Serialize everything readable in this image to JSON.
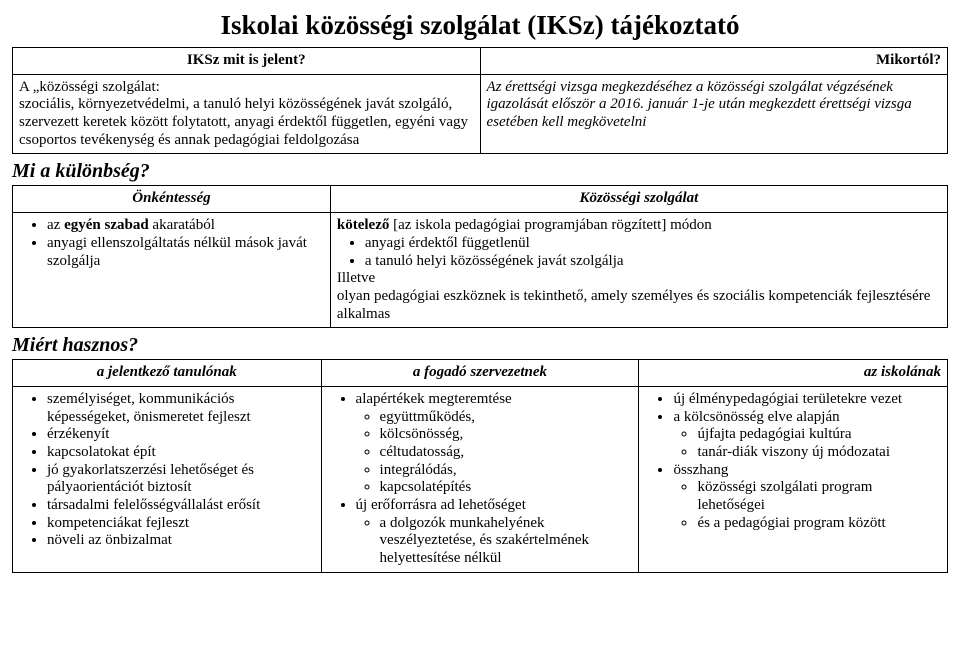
{
  "title": "Iskolai közösségi szolgálat (IKSz) tájékoztató",
  "intro": {
    "left_head": "IKSz mit is jelent?",
    "right_head": "Mikortól?",
    "left_body_html": "A „közösségi szolgálat:<br>szociális, környezetvédelmi, a tanuló helyi közösségének javát szolgáló, szervezett keretek között folytatott, anyagi érdektől független, egyéni vagy csoportos tevékenység és annak pedagógiai feldolgozása",
    "right_body_html": "<em class='it'>Az érettségi vizsga megkezdéséhez a közösségi szolgálat végzésének igazolását először a 2016. január 1-je után megkezdett érettségi vizsga esetében kell megkövetelni</em>"
  },
  "diff": {
    "heading": "Mi a különbség?",
    "left_head": "Önkéntesség",
    "right_head": "Közösségi szolgálat",
    "left_items_html": [
      "az <b class='bd'>egyén szabad</b> akaratából",
      "anyagi ellenszolgáltatás nélkül mások javát szolgálja"
    ],
    "right_body_html": "<b class='bd'>kötelező</b> [az iskola pedagógiai programjában rögzített] módon<ul class='lvl1'><li>anyagi érdektől függetlenül</li><li>a tanuló helyi közösségének javát szolgálja</li></ul>Illetve<br>olyan pedagógiai eszköznek is tekinthető, amely személyes és szociális kompetenciák fejlesztésére alkalmas"
  },
  "useful": {
    "heading": "Miért hasznos?",
    "col1_head": "a jelentkező tanulónak",
    "col2_head": "a fogadó szervezetnek",
    "col3_head": "az iskolának",
    "col1_html": "<ul class='lvl1'><li>személyiséget, kommunikációs képességeket, önismeretet fejleszt</li><li>érzékenyít</li><li>kapcsolatokat épít</li><li>jó gyakorlatszerzési lehetőséget és pályaorientációt biztosít</li><li>társadalmi felelősségvállalást erősít</li><li>kompetenciákat fejleszt</li><li>növeli az önbizalmat</li></ul>",
    "col2_html": "<ul class='lvl1'><li>alapértékek megteremtése<ul class='lvl2'><li>együttműködés,</li><li>kölcsönösség,</li><li>céltudatosság,</li><li>integrálódás,</li><li>kapcsolatépítés</li></ul></li><li>új erőforrásra ad lehetőséget<ul class='lvl2'><li>a dolgozók munkahelyének veszélyeztetése, és szakértelmének helyettesítése nélkül</li></ul></li></ul>",
    "col3_html": "<ul class='lvl1'><li>új élménypedagógiai területekre vezet</li><li>a kölcsönösség elve alapján<ul class='lvl2'><li>újfajta pedagógiai kultúra</li><li>tanár-diák viszony új módozatai</li></ul></li><li>összhang<ul class='lvl2'><li>közösségi szolgálati program lehetőségei</li><li>és a pedagógiai program között</li></ul></li></ul>"
  }
}
